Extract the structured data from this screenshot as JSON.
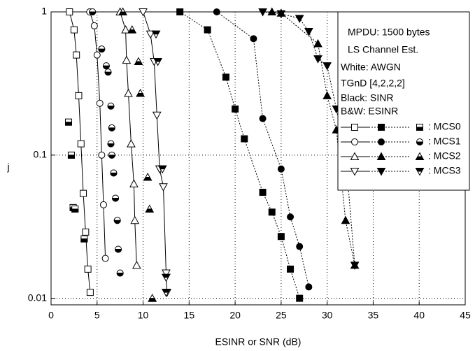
{
  "chart_data": {
    "type": "line",
    "x_label": "ESINR or SNR (dB)",
    "y_label": "j",
    "xlim": [
      0,
      45
    ],
    "xticks": [
      0,
      5,
      10,
      15,
      20,
      25,
      30,
      35,
      40,
      45
    ],
    "ylim": [
      0.009,
      1
    ],
    "yticks": [
      0.01,
      0.1,
      1
    ],
    "log_y": true,
    "grid": true,
    "legend_position": "upper right",
    "legend_notes": [
      "MPDU: 1500 bytes",
      "LS Channel Est.",
      "White: AWGN",
      "TGnD [4,2,2,2]",
      "Black: SINR",
      "B&W: ESINR"
    ],
    "series": [
      {
        "name": ": MCS0",
        "marker": "square",
        "awgn": {
          "x": [
            2,
            2.5,
            2.75,
            3,
            3.25,
            3.5,
            3.75,
            4,
            4.25
          ],
          "y": [
            1,
            0.75,
            0.5,
            0.26,
            0.12,
            0.054,
            0.029,
            0.016,
            0.011
          ]
        },
        "sinr": {
          "x": [
            14,
            17,
            19,
            20,
            21,
            23,
            24,
            25,
            26,
            27
          ],
          "y": [
            1,
            0.75,
            0.35,
            0.21,
            0.13,
            0.055,
            0.04,
            0.027,
            0.016,
            0.01
          ]
        },
        "esinr": {
          "x": [
            1.9,
            2.2,
            2.4,
            2.6,
            3.6
          ],
          "y": [
            0.17,
            0.1,
            0.043,
            0.042,
            0.026
          ]
        }
      },
      {
        "name": ": MCS1",
        "marker": "circle",
        "awgn": {
          "x": [
            4.2,
            4.7,
            5,
            5.3,
            5.5,
            5.7,
            5.9
          ],
          "y": [
            1,
            0.8,
            0.5,
            0.23,
            0.1,
            0.045,
            0.019
          ]
        },
        "sinr": {
          "x": [
            18,
            22,
            23,
            25,
            26,
            27,
            28
          ],
          "y": [
            1,
            0.65,
            0.18,
            0.08,
            0.037,
            0.023,
            0.012
          ]
        },
        "esinr": {
          "x": [
            4.5,
            5.5,
            6,
            6.2,
            6.5,
            6.6,
            6.5,
            6.6,
            6.8,
            7,
            7.2,
            7.3,
            7.5
          ],
          "y": [
            1,
            0.55,
            0.42,
            0.38,
            0.22,
            0.155,
            0.12,
            0.1,
            0.075,
            0.05,
            0.035,
            0.022,
            0.015
          ]
        }
      },
      {
        "name": ": MCS2",
        "marker": "triangle-up",
        "awgn": {
          "x": [
            7.5,
            8.1,
            8.2,
            8.4,
            8.7,
            9,
            9.1,
            9.3
          ],
          "y": [
            1,
            0.75,
            0.46,
            0.27,
            0.12,
            0.063,
            0.035,
            0.017
          ]
        },
        "sinr": {
          "x": [
            24,
            25,
            29,
            30,
            31,
            32,
            33
          ],
          "y": [
            1,
            0.98,
            0.6,
            0.26,
            0.15,
            0.035,
            0.017
          ]
        },
        "esinr": {
          "x": [
            7.8,
            8.8,
            9.5,
            9.7,
            10.5,
            10.7,
            11
          ],
          "y": [
            1,
            0.75,
            0.45,
            0.27,
            0.07,
            0.042,
            0.01
          ]
        }
      },
      {
        "name": ": MCS3",
        "marker": "triangle-down",
        "awgn": {
          "x": [
            10,
            10.8,
            11.2,
            11.5,
            11.8,
            12.2,
            12.5,
            12.6
          ],
          "y": [
            1,
            0.7,
            0.45,
            0.19,
            0.08,
            0.06,
            0.015,
            0.011
          ]
        },
        "sinr": {
          "x": [
            23,
            25,
            27,
            28,
            29,
            30,
            31,
            32,
            33
          ],
          "y": [
            1,
            0.97,
            0.9,
            0.73,
            0.47,
            0.42,
            0.21,
            0.1,
            0.017
          ]
        },
        "esinr": {
          "x": [
            11.4,
            11.6,
            12.1,
            12.5,
            12.5
          ],
          "y": [
            0.7,
            0.45,
            0.08,
            0.014,
            0.011
          ]
        }
      }
    ]
  }
}
